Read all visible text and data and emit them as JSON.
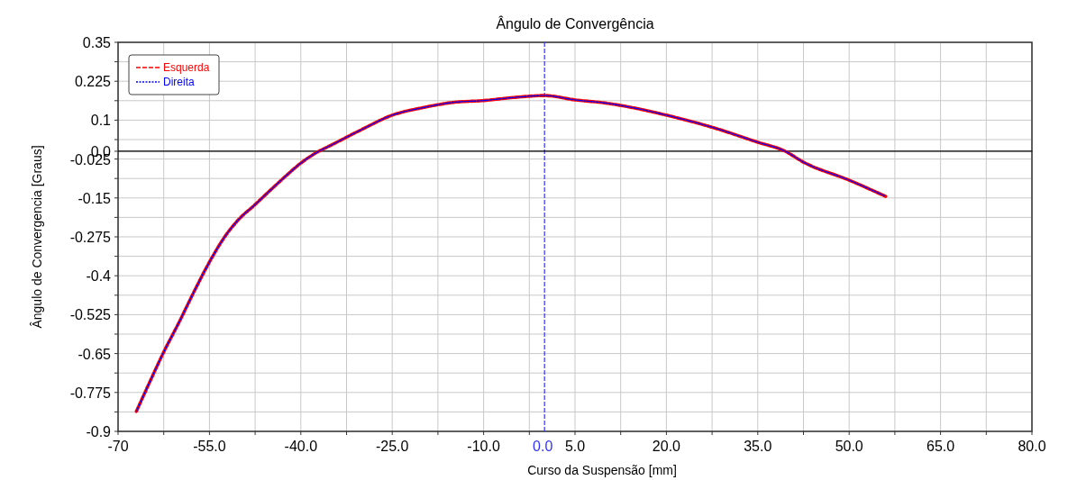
{
  "chart_data": {
    "type": "line",
    "title": "Ângulo de Convergência",
    "xlabel": "Curso da Suspensão [mm]",
    "ylabel": "Ângulo de Convergencia [Graus]",
    "x": [
      -67,
      -65,
      -62.5,
      -60,
      -57.5,
      -55,
      -52.5,
      -50,
      -47.5,
      -45,
      -42.5,
      -40,
      -37.5,
      -35,
      -30,
      -25,
      -20,
      -15,
      -10,
      -5,
      0,
      5,
      10,
      15,
      20,
      27.5,
      35,
      39.5,
      42.5,
      50,
      56
    ],
    "series": [
      {
        "name": "Esquerda",
        "color": "#ff0000",
        "line_style": "dashed",
        "values": [
          -0.836,
          -0.75,
          -0.645,
          -0.55,
          -0.45,
          -0.356,
          -0.275,
          -0.215,
          -0.171,
          -0.125,
          -0.08,
          -0.038,
          -0.005,
          0.02,
          0.07,
          0.116,
          0.14,
          0.157,
          0.163,
          0.173,
          0.179,
          0.165,
          0.155,
          0.138,
          0.116,
          0.077,
          0.029,
          0,
          -0.035,
          -0.093,
          -0.145
        ]
      },
      {
        "name": "Direita",
        "color": "#0000ff",
        "line_style": "dotted",
        "values": [
          -0.836,
          -0.75,
          -0.645,
          -0.55,
          -0.45,
          -0.356,
          -0.275,
          -0.215,
          -0.171,
          -0.125,
          -0.08,
          -0.038,
          -0.005,
          0.02,
          0.07,
          0.116,
          0.14,
          0.157,
          0.163,
          0.173,
          0.179,
          0.165,
          0.155,
          0.138,
          0.116,
          0.077,
          0.029,
          0,
          -0.035,
          -0.093,
          -0.145
        ]
      }
    ],
    "xlim": [
      -70,
      80
    ],
    "xticks": [
      -70,
      {
        "value": -62.5,
        "label": null
      },
      {
        "value": -55,
        "label": "-55.0"
      },
      {
        "value": -47.5,
        "label": null
      },
      {
        "value": -40,
        "label": "-40.0"
      },
      {
        "value": -32.5,
        "label": null
      },
      {
        "value": -25,
        "label": "-25.0"
      },
      {
        "value": -17.5,
        "label": null
      },
      {
        "value": -10,
        "label": "-10.0"
      },
      {
        "value": -2.5,
        "label": null
      },
      {
        "value": 5,
        "label": "5.0"
      },
      {
        "value": 12.5,
        "label": null
      },
      {
        "value": 20,
        "label": "20.0"
      },
      {
        "value": 27.5,
        "label": null
      },
      {
        "value": 35,
        "label": "35.0"
      },
      {
        "value": 42.5,
        "label": null
      },
      {
        "value": 50,
        "label": "50.0"
      },
      {
        "value": 57.5,
        "label": null
      },
      {
        "value": 65,
        "label": "65.0"
      },
      {
        "value": 72.5,
        "label": null
      },
      {
        "value": 80,
        "label": "80.0"
      }
    ],
    "ylim": [
      -0.9,
      0.35
    ],
    "yticks": [
      0.35,
      {
        "value": 0.2875,
        "label": null
      },
      0.225,
      {
        "value": 0.1625,
        "label": null
      },
      0.1,
      {
        "value": 0.0375,
        "label": null
      },
      {
        "value": 0,
        "label": "0.0"
      },
      -0.025,
      {
        "value": -0.0875,
        "label": null
      },
      -0.15,
      {
        "value": -0.2125,
        "label": null
      },
      -0.275,
      {
        "value": -0.3375,
        "label": null
      },
      -0.4,
      {
        "value": -0.4625,
        "label": null
      },
      -0.525,
      {
        "value": -0.5875,
        "label": null
      },
      -0.65,
      {
        "value": -0.7125,
        "label": null
      },
      -0.775,
      {
        "value": -0.8375,
        "label": null
      },
      -0.9
    ],
    "ref_lines": [
      {
        "axis": "x",
        "value": 0,
        "label": "0.0",
        "color": "#3333ff",
        "line_style": "dashed"
      },
      {
        "axis": "y",
        "value": 0,
        "label": null,
        "color": "#000000",
        "line_style": "solid"
      }
    ],
    "grid": true,
    "legend": "top left"
  }
}
